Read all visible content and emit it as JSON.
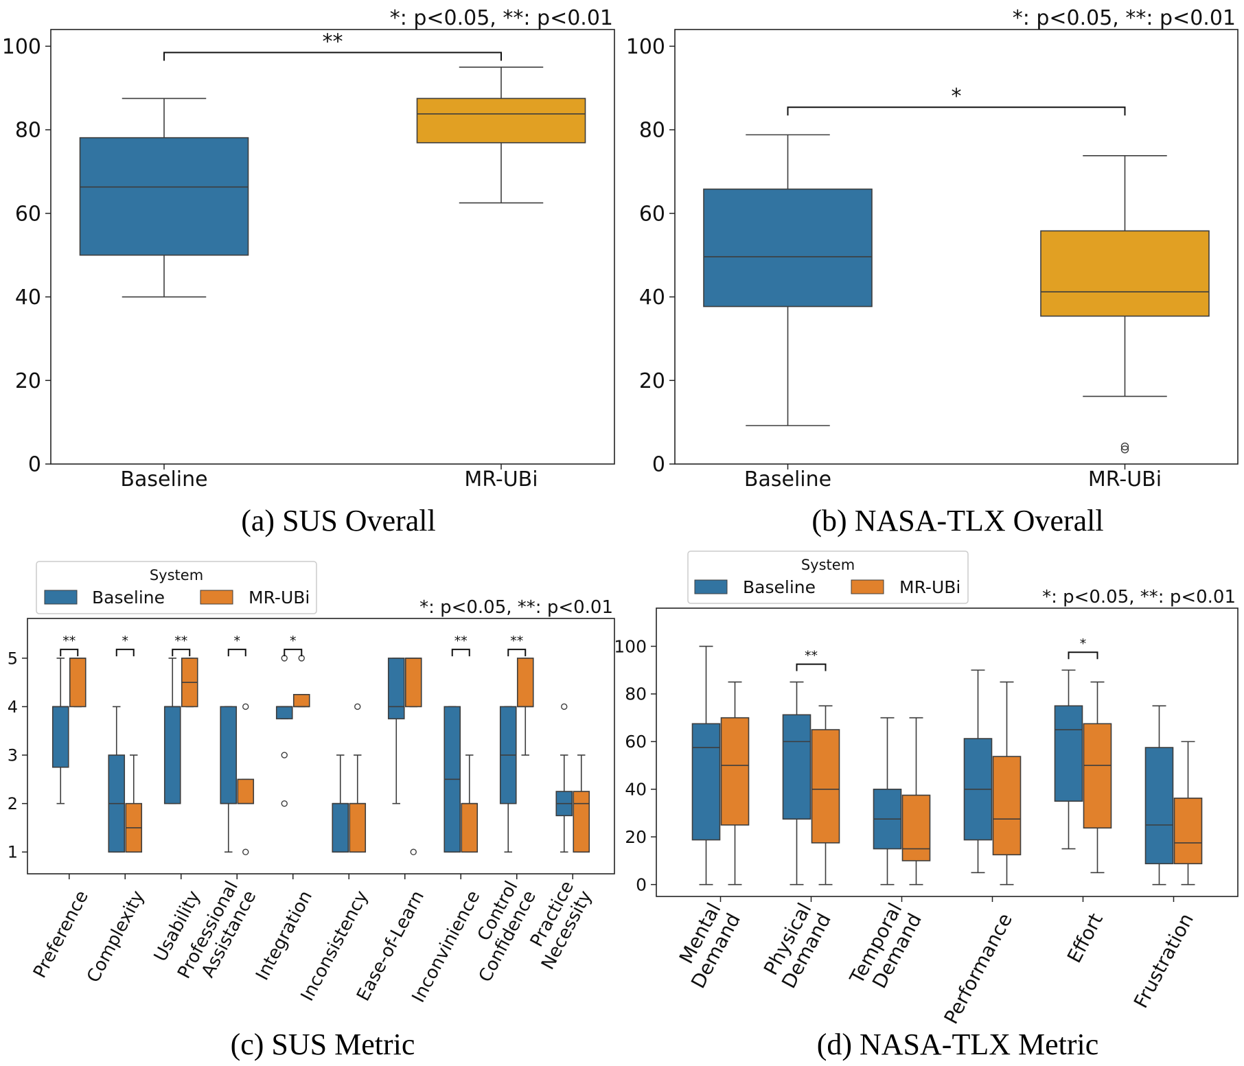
{
  "colors": {
    "baseline_overall": "#3274a1",
    "mrubi_overall": "#e1a023",
    "baseline": "#3274a1",
    "mrubi": "#e1812c"
  },
  "chart_data": [
    {
      "id": "a",
      "type": "box",
      "caption": "(a) SUS Overall",
      "significance_note": "*: p<0.05, **: p<0.01",
      "categories": [
        "Baseline",
        "MR-UBi"
      ],
      "ylim": [
        0,
        104
      ],
      "yticks": [
        0,
        20,
        40,
        60,
        80,
        100
      ],
      "boxes": [
        {
          "category": "Baseline",
          "series": "Baseline",
          "whislo": 40,
          "q1": 50,
          "med": 66.3,
          "q3": 78.1,
          "whishi": 87.5,
          "fliers": []
        },
        {
          "category": "MR-UBi",
          "series": "MR-UBi",
          "whislo": 62.5,
          "q1": 76.9,
          "med": 83.8,
          "q3": 87.5,
          "whishi": 95,
          "fliers": []
        }
      ],
      "brackets": [
        {
          "from": 0,
          "to": 1,
          "level": 98.5,
          "label": "**"
        }
      ]
    },
    {
      "id": "b",
      "type": "box",
      "caption": "(b) NASA-TLX Overall",
      "significance_note": "*: p<0.05, **: p<0.01",
      "categories": [
        "Baseline",
        "MR-UBi"
      ],
      "ylim": [
        0,
        104
      ],
      "yticks": [
        0,
        20,
        40,
        60,
        80,
        100
      ],
      "boxes": [
        {
          "category": "Baseline",
          "series": "Baseline",
          "whislo": 9.2,
          "q1": 37.7,
          "med": 49.6,
          "q3": 65.8,
          "whishi": 78.8,
          "fliers": []
        },
        {
          "category": "MR-UBi",
          "series": "MR-UBi",
          "whislo": 16.2,
          "q1": 35.4,
          "med": 41.2,
          "q3": 55.8,
          "whishi": 73.8,
          "fliers": [
            3.5,
            4.2
          ]
        }
      ],
      "brackets": [
        {
          "from": 0,
          "to": 1,
          "level": 85.4,
          "label": "*"
        }
      ]
    },
    {
      "id": "c",
      "type": "box",
      "caption": "(c) SUS Metric",
      "significance_note": "*: p<0.05, **: p<0.01",
      "legend": {
        "title": "System",
        "entries": [
          "Baseline",
          "MR-UBi"
        ],
        "location": "top-left"
      },
      "series": [
        "Baseline",
        "MR-UBi"
      ],
      "categories": [
        [
          "Preference"
        ],
        [
          "Complexity"
        ],
        [
          "Usability"
        ],
        [
          "Professional",
          "Assistance"
        ],
        [
          "Integration"
        ],
        [
          "Inconsistency"
        ],
        [
          "Ease-of-Learn"
        ],
        [
          "Inconvinience"
        ],
        [
          "Control",
          "Confidence"
        ],
        [
          "Practice",
          "Necessity"
        ]
      ],
      "ylim": [
        0.55,
        5.82
      ],
      "yticks": [
        1,
        2,
        3,
        4,
        5
      ],
      "boxes": [
        {
          "category": 0,
          "series": "Baseline",
          "whislo": 2,
          "q1": 2.75,
          "med": 4,
          "q3": 4,
          "whishi": 5,
          "fliers": []
        },
        {
          "category": 0,
          "series": "MR-UBi",
          "whislo": 4,
          "q1": 4,
          "med": 5,
          "q3": 5,
          "whishi": 5,
          "fliers": []
        },
        {
          "category": 1,
          "series": "Baseline",
          "whislo": 1,
          "q1": 1,
          "med": 2,
          "q3": 3,
          "whishi": 4,
          "fliers": []
        },
        {
          "category": 1,
          "series": "MR-UBi",
          "whislo": 1,
          "q1": 1,
          "med": 1.5,
          "q3": 2,
          "whishi": 3,
          "fliers": []
        },
        {
          "category": 2,
          "series": "Baseline",
          "whislo": 2,
          "q1": 2,
          "med": 4,
          "q3": 4,
          "whishi": 5,
          "fliers": []
        },
        {
          "category": 2,
          "series": "MR-UBi",
          "whislo": 4,
          "q1": 4,
          "med": 4.5,
          "q3": 5,
          "whishi": 5,
          "fliers": []
        },
        {
          "category": 3,
          "series": "Baseline",
          "whislo": 1,
          "q1": 2,
          "med": 2,
          "q3": 4,
          "whishi": 4,
          "fliers": []
        },
        {
          "category": 3,
          "series": "MR-UBi",
          "whislo": 2,
          "q1": 2,
          "med": 2,
          "q3": 2.5,
          "whishi": 2.5,
          "fliers": [
            1,
            4
          ]
        },
        {
          "category": 4,
          "series": "Baseline",
          "whislo": 3.75,
          "q1": 3.75,
          "med": 4,
          "q3": 4,
          "whishi": 4,
          "fliers": [
            2,
            3,
            5
          ]
        },
        {
          "category": 4,
          "series": "MR-UBi",
          "whislo": 4,
          "q1": 4,
          "med": 4,
          "q3": 4.25,
          "whishi": 4.25,
          "fliers": [
            5
          ]
        },
        {
          "category": 5,
          "series": "Baseline",
          "whislo": 1,
          "q1": 1,
          "med": 2,
          "q3": 2,
          "whishi": 3,
          "fliers": []
        },
        {
          "category": 5,
          "series": "MR-UBi",
          "whislo": 1,
          "q1": 1,
          "med": 2,
          "q3": 2,
          "whishi": 3,
          "fliers": [
            4
          ]
        },
        {
          "category": 6,
          "series": "Baseline",
          "whislo": 2,
          "q1": 3.75,
          "med": 4,
          "q3": 5,
          "whishi": 5,
          "fliers": []
        },
        {
          "category": 6,
          "series": "MR-UBi",
          "whislo": 4,
          "q1": 4,
          "med": 5,
          "q3": 5,
          "whishi": 5,
          "fliers": [
            1
          ]
        },
        {
          "category": 7,
          "series": "Baseline",
          "whislo": 1,
          "q1": 1,
          "med": 2.5,
          "q3": 4,
          "whishi": 4,
          "fliers": []
        },
        {
          "category": 7,
          "series": "MR-UBi",
          "whislo": 1,
          "q1": 1,
          "med": 2,
          "q3": 2,
          "whishi": 3,
          "fliers": []
        },
        {
          "category": 8,
          "series": "Baseline",
          "whislo": 1,
          "q1": 2,
          "med": 3,
          "q3": 4,
          "whishi": 4,
          "fliers": []
        },
        {
          "category": 8,
          "series": "MR-UBi",
          "whislo": 3,
          "q1": 4,
          "med": 4,
          "q3": 5,
          "whishi": 5,
          "fliers": []
        },
        {
          "category": 9,
          "series": "Baseline",
          "whislo": 1,
          "q1": 1.75,
          "med": 2,
          "q3": 2.25,
          "whishi": 3,
          "fliers": [
            4
          ]
        },
        {
          "category": 9,
          "series": "MR-UBi",
          "whislo": 1,
          "q1": 1,
          "med": 2,
          "q3": 2.25,
          "whishi": 3,
          "fliers": []
        }
      ],
      "brackets": [
        {
          "category": 0,
          "level": 5.18,
          "label": "**"
        },
        {
          "category": 1,
          "level": 5.18,
          "label": "*"
        },
        {
          "category": 2,
          "level": 5.18,
          "label": "**"
        },
        {
          "category": 3,
          "level": 5.18,
          "label": "*"
        },
        {
          "category": 4,
          "level": 5.18,
          "label": "*"
        },
        {
          "category": 7,
          "level": 5.18,
          "label": "**"
        },
        {
          "category": 8,
          "level": 5.18,
          "label": "**"
        }
      ]
    },
    {
      "id": "d",
      "type": "box",
      "caption": "(d) NASA-TLX Metric",
      "significance_note": "*: p<0.05, **: p<0.01",
      "legend": {
        "title": "System",
        "entries": [
          "Baseline",
          "MR-UBi"
        ],
        "location": "top-left"
      },
      "series": [
        "Baseline",
        "MR-UBi"
      ],
      "categories": [
        [
          "Mental",
          "Demand"
        ],
        [
          "Physical",
          "Demand"
        ],
        [
          "Temporal",
          "Demand"
        ],
        [
          "Performance"
        ],
        [
          "Effort"
        ],
        [
          "Frustration"
        ]
      ],
      "ylim": [
        -5,
        116
      ],
      "yticks": [
        0,
        20,
        40,
        60,
        80,
        100
      ],
      "boxes": [
        {
          "category": 0,
          "series": "Baseline",
          "whislo": 0,
          "q1": 18.75,
          "med": 57.5,
          "q3": 67.5,
          "whishi": 100,
          "fliers": []
        },
        {
          "category": 0,
          "series": "MR-UBi",
          "whislo": 0,
          "q1": 25,
          "med": 50,
          "q3": 70,
          "whishi": 85,
          "fliers": []
        },
        {
          "category": 1,
          "series": "Baseline",
          "whislo": 0,
          "q1": 27.5,
          "med": 60,
          "q3": 71.25,
          "whishi": 85,
          "fliers": []
        },
        {
          "category": 1,
          "series": "MR-UBi",
          "whislo": 0,
          "q1": 17.5,
          "med": 40,
          "q3": 65,
          "whishi": 75,
          "fliers": []
        },
        {
          "category": 2,
          "series": "Baseline",
          "whislo": 0,
          "q1": 15,
          "med": 27.5,
          "q3": 40,
          "whishi": 70,
          "fliers": []
        },
        {
          "category": 2,
          "series": "MR-UBi",
          "whislo": 0,
          "q1": 10,
          "med": 15,
          "q3": 37.5,
          "whishi": 70,
          "fliers": []
        },
        {
          "category": 3,
          "series": "Baseline",
          "whislo": 5,
          "q1": 18.75,
          "med": 40,
          "q3": 61.25,
          "whishi": 90,
          "fliers": []
        },
        {
          "category": 3,
          "series": "MR-UBi",
          "whislo": 0,
          "q1": 12.5,
          "med": 27.5,
          "q3": 53.75,
          "whishi": 85,
          "fliers": []
        },
        {
          "category": 4,
          "series": "Baseline",
          "whislo": 15,
          "q1": 35,
          "med": 65,
          "q3": 75,
          "whishi": 90,
          "fliers": []
        },
        {
          "category": 4,
          "series": "MR-UBi",
          "whislo": 5,
          "q1": 23.75,
          "med": 50,
          "q3": 67.5,
          "whishi": 85,
          "fliers": []
        },
        {
          "category": 5,
          "series": "Baseline",
          "whislo": 0,
          "q1": 8.75,
          "med": 25,
          "q3": 57.5,
          "whishi": 75,
          "fliers": []
        },
        {
          "category": 5,
          "series": "MR-UBi",
          "whislo": 0,
          "q1": 8.75,
          "med": 17.5,
          "q3": 36.25,
          "whishi": 60,
          "fliers": []
        }
      ],
      "brackets": [
        {
          "category": 1,
          "level": 92.5,
          "label": "**"
        },
        {
          "category": 4,
          "level": 97.5,
          "label": "*"
        }
      ]
    }
  ]
}
